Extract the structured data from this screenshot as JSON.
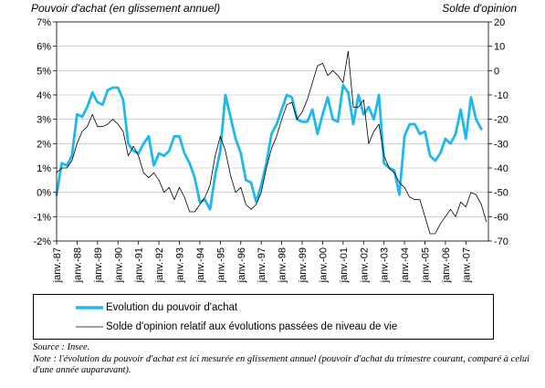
{
  "chart_data": {
    "type": "line",
    "left_axis_title": "Pouvoir d'achat (en glissement annuel)",
    "right_axis_title": "Solde d'opinion",
    "y_left": {
      "min": -2,
      "max": 7,
      "ticks": [
        "-2%",
        "-1%",
        "0%",
        "1%",
        "2%",
        "3%",
        "4%",
        "5%",
        "6%",
        "7%"
      ]
    },
    "y_right": {
      "min": -70,
      "max": 20,
      "ticks": [
        "-70",
        "-60",
        "-50",
        "-40",
        "-30",
        "-20",
        "-10",
        "0",
        "10",
        "20"
      ]
    },
    "x_range": [
      1987,
      2008.1
    ],
    "x_ticks": [
      "janv.-87",
      "janv.-88",
      "janv.-89",
      "janv.-90",
      "janv.-91",
      "janv.-92",
      "janv.-93",
      "janv.-94",
      "janv.-95",
      "janv.-96",
      "janv.-97",
      "janv.-98",
      "janv.-99",
      "janv.-00",
      "janv.-01",
      "janv.-02",
      "janv.-03",
      "janv.-04",
      "janv.-05",
      "janv.-06",
      "janv.-07"
    ],
    "grid": "horizontal",
    "series": [
      {
        "name": "Evolution du pouvoir d'achat",
        "axis": "left",
        "color": "#1fb8ec",
        "x": [
          1987.0,
          1987.25,
          1987.5,
          1987.75,
          1988.0,
          1988.25,
          1988.5,
          1988.75,
          1989.0,
          1989.25,
          1989.5,
          1989.75,
          1990.0,
          1990.25,
          1990.5,
          1990.75,
          1991.0,
          1991.25,
          1991.5,
          1991.75,
          1992.0,
          1992.25,
          1992.5,
          1992.75,
          1993.0,
          1993.25,
          1993.5,
          1993.75,
          1994.0,
          1994.25,
          1994.5,
          1994.75,
          1995.0,
          1995.25,
          1995.5,
          1995.75,
          1996.0,
          1996.25,
          1996.5,
          1996.75,
          1997.0,
          1997.25,
          1997.5,
          1997.75,
          1998.0,
          1998.25,
          1998.5,
          1998.75,
          1999.0,
          1999.25,
          1999.5,
          1999.75,
          2000.0,
          2000.25,
          2000.5,
          2000.75,
          2001.0,
          2001.25,
          2001.5,
          2001.75,
          2002.0,
          2002.25,
          2002.5,
          2002.75,
          2003.0,
          2003.25,
          2003.5,
          2003.75,
          2004.0,
          2004.25,
          2004.5,
          2004.75,
          2005.0,
          2005.25,
          2005.5,
          2005.75,
          2006.0,
          2006.25,
          2006.5,
          2006.75,
          2007.0,
          2007.25,
          2007.5,
          2007.75
        ],
        "values": [
          -0.1,
          1.2,
          1.1,
          1.5,
          3.2,
          3.1,
          3.5,
          4.1,
          3.7,
          3.6,
          4.2,
          4.3,
          4.3,
          3.8,
          2.0,
          1.7,
          1.6,
          2.0,
          2.3,
          1.1,
          1.6,
          1.5,
          1.7,
          2.3,
          2.3,
          1.6,
          1.2,
          0.6,
          -0.4,
          -0.3,
          -0.7,
          0.7,
          1.7,
          4.0,
          3.1,
          2.2,
          1.6,
          0.5,
          0.4,
          -0.4,
          0.3,
          1.2,
          2.4,
          2.8,
          3.4,
          4.0,
          3.9,
          3.0,
          2.9,
          2.9,
          3.4,
          2.4,
          3.2,
          3.9,
          3.0,
          2.9,
          4.4,
          4.1,
          2.8,
          4.0,
          3.2,
          3.5,
          3.0,
          4.0,
          1.2,
          1.0,
          0.9,
          -0.1,
          2.3,
          2.8,
          2.8,
          2.4,
          2.5,
          1.5,
          1.3,
          1.6,
          2.2,
          2.0,
          2.4,
          3.4,
          2.2,
          3.9,
          3.0,
          2.6
        ]
      },
      {
        "name": "Solde d'opinion relatif aux évolutions passées de niveau de vie",
        "axis": "right",
        "color": "#000000",
        "x": [
          1987.0,
          1987.25,
          1987.5,
          1987.75,
          1988.0,
          1988.25,
          1988.5,
          1988.75,
          1989.0,
          1989.25,
          1989.5,
          1989.75,
          1990.0,
          1990.25,
          1990.5,
          1990.75,
          1991.0,
          1991.25,
          1991.5,
          1991.75,
          1992.0,
          1992.25,
          1992.5,
          1992.75,
          1993.0,
          1993.25,
          1993.5,
          1993.75,
          1994.0,
          1994.25,
          1994.5,
          1994.75,
          1995.0,
          1995.25,
          1995.5,
          1995.75,
          1996.0,
          1996.25,
          1996.5,
          1996.75,
          1997.0,
          1997.25,
          1997.5,
          1997.75,
          1998.0,
          1998.25,
          1998.5,
          1998.75,
          1999.0,
          1999.25,
          1999.5,
          1999.75,
          2000.0,
          2000.25,
          2000.5,
          2000.75,
          2001.0,
          2001.25,
          2001.5,
          2001.75,
          2002.0,
          2002.25,
          2002.5,
          2002.75,
          2003.0,
          2003.25,
          2003.5,
          2003.75,
          2004.0,
          2004.25,
          2004.5,
          2004.75,
          2005.0,
          2005.25,
          2005.5,
          2005.75,
          2006.0,
          2006.25,
          2006.5,
          2006.75,
          2007.0,
          2007.25,
          2007.5,
          2007.75,
          2008.0
        ],
        "values": [
          -42,
          -40,
          -40,
          -37,
          -30,
          -25,
          -23,
          -18,
          -23,
          -23,
          -22,
          -20,
          -22,
          -25,
          -35,
          -31,
          -35,
          -42,
          -44,
          -42,
          -45,
          -50,
          -48,
          -53,
          -48,
          -52,
          -58,
          -58,
          -55,
          -52,
          -47,
          -35,
          -27,
          -33,
          -43,
          -50,
          -48,
          -55,
          -57,
          -55,
          -50,
          -40,
          -32,
          -27,
          -20,
          -14,
          -13,
          -20,
          -17,
          -12,
          -5,
          2,
          3,
          -2,
          0,
          -2,
          -5,
          8,
          -15,
          -15,
          -12,
          -30,
          -25,
          -22,
          -35,
          -40,
          -42,
          -46,
          -48,
          -52,
          -53,
          -53,
          -60,
          -67,
          -67,
          -63,
          -60,
          -57,
          -60,
          -54,
          -56,
          -50,
          -51,
          -55,
          -62
        ]
      }
    ]
  },
  "legend": {
    "items": [
      {
        "label": "Evolution du pouvoir d'achat",
        "color": "#1fb8ec"
      },
      {
        "label": "Solde d'opinion relatif aux évolutions passées de niveau de vie",
        "color": "#000000"
      }
    ]
  },
  "notes": {
    "source": "Source : Insee.",
    "note": "Note : l'évolution du pouvoir d'achat est ici mesurée en glissement annuel (pouvoir d'achat du trimestre courant, comparé à celui d'une année auparavant)."
  }
}
